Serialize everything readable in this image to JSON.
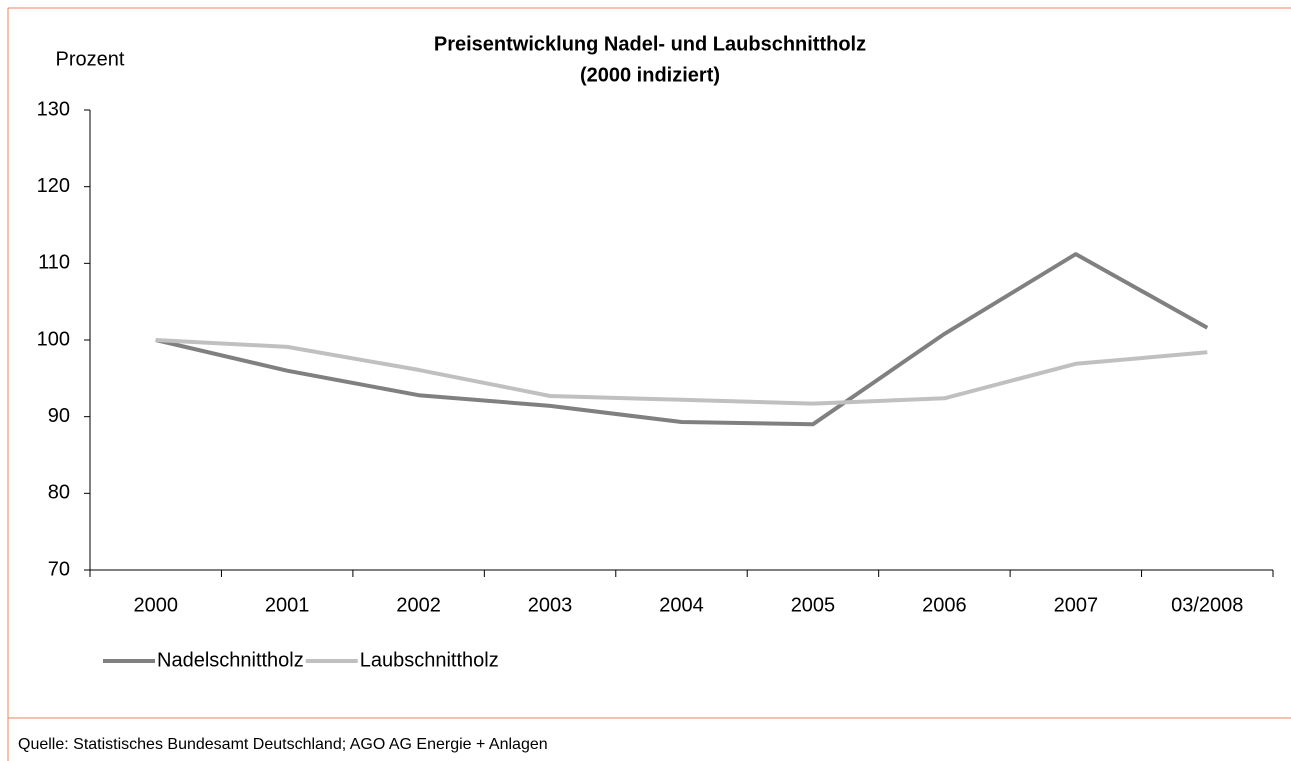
{
  "chart_data": {
    "type": "line",
    "title": "Preisentwicklung Nadel- und Laubschnittholz",
    "subtitle": "(2000 indiziert)",
    "y_label": "Prozent",
    "categories": [
      "2000",
      "2001",
      "2002",
      "2003",
      "2004",
      "2005",
      "2006",
      "2007",
      "03/2008"
    ],
    "series": [
      {
        "name": "Nadelschnittholz",
        "color": "#808080",
        "values": [
          100,
          96,
          92.8,
          91.4,
          89.3,
          89,
          100.8,
          111.2,
          101.6
        ]
      },
      {
        "name": "Laubschnittholz",
        "color": "#c0c0c0",
        "values": [
          100,
          99.1,
          96.1,
          92.7,
          92.2,
          91.7,
          92.4,
          96.9,
          98.4
        ]
      }
    ],
    "ylim": [
      70,
      130
    ],
    "yticks": [
      70,
      80,
      90,
      100,
      110,
      120,
      130
    ],
    "grid": false,
    "legend": "bottom-left",
    "source": "Quelle: Statistisches Bundesamt Deutschland; AGO AG Energie + Anlagen"
  }
}
